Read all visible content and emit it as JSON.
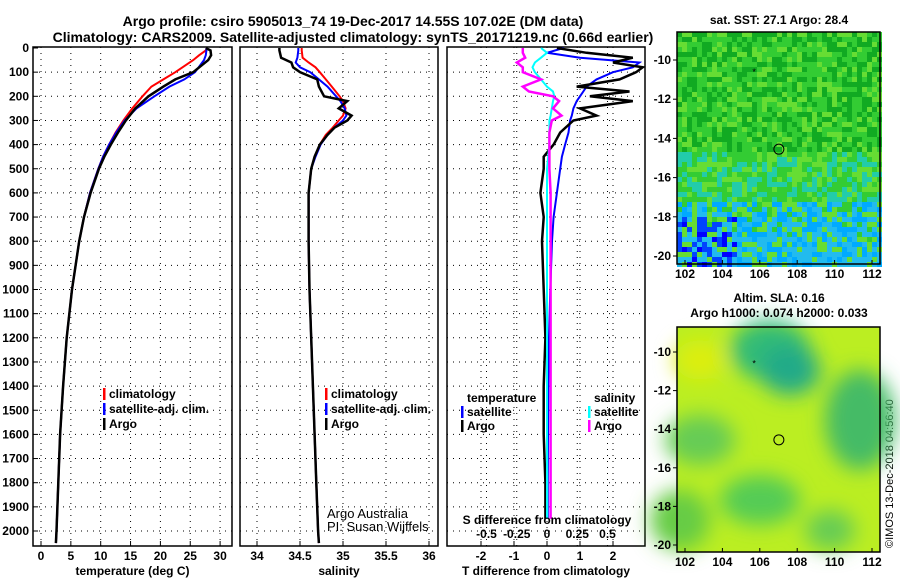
{
  "title": {
    "line1": "Argo profile: csiro 5905013_74 19-Dec-2017 14.55S 107.02E (DM data)",
    "line2": "Climatology: CARS2009. Satellite-adjusted climatology: synTS_20171219.nc (0.66d earlier)"
  },
  "credit": "©IMOS 13-Dec-2018 04:56:40",
  "colors": {
    "climatology": "#ff0000",
    "satellite": "#0000ff",
    "argo": "#000000",
    "sal_satellite": "#00ffff",
    "sal_argo": "#ff00ff"
  },
  "chart_data": [
    {
      "type": "line",
      "id": "temperature",
      "xlabel": "temperature (deg C)",
      "ylabel": "",
      "xlim": [
        -1.3,
        32
      ],
      "ylim": [
        2065,
        -10
      ],
      "xticks": [
        "0",
        "5",
        "10",
        "15",
        "20",
        "25",
        "30"
      ],
      "yticks": [
        "0",
        "100",
        "200",
        "300",
        "400",
        "500",
        "600",
        "700",
        "800",
        "900",
        "1000",
        "1100",
        "1200",
        "1300",
        "1400",
        "1500",
        "1600",
        "1700",
        "1800",
        "1900",
        "2000"
      ],
      "legend": [
        "climatology",
        "satellite-adj. clim.",
        "Argo"
      ],
      "depth": [
        0,
        10,
        30,
        50,
        100,
        130,
        160,
        200,
        250,
        300,
        350,
        400,
        450,
        500,
        600,
        700,
        800,
        900,
        1000,
        1200,
        1400,
        1600,
        1800,
        2000,
        2050
      ],
      "series": [
        {
          "name": "climatology",
          "values": [
            27.8,
            27.6,
            26.5,
            25.5,
            22.5,
            20.5,
            18.5,
            17.0,
            15.3,
            13.8,
            12.5,
            11.4,
            10.4,
            9.6,
            8.2,
            7.2,
            6.4,
            5.8,
            5.2,
            4.3,
            3.7,
            3.2,
            2.9,
            2.6,
            2.5
          ]
        },
        {
          "name": "satellite-adj. clim.",
          "values": [
            27.7,
            27.7,
            27.6,
            27.3,
            25.8,
            24.0,
            21.5,
            19.0,
            16.0,
            14.0,
            12.6,
            11.4,
            10.4,
            9.6,
            8.2,
            7.2,
            6.4,
            5.8,
            5.2,
            4.3,
            3.7,
            3.2,
            2.9,
            2.6,
            2.5
          ]
        },
        {
          "name": "Argo",
          "values": [
            27.6,
            28.4,
            28.5,
            28.0,
            25.5,
            22.5,
            20.5,
            18.0,
            15.8,
            14.2,
            12.9,
            11.7,
            10.6,
            9.7,
            8.3,
            7.2,
            6.4,
            5.8,
            5.2,
            4.3,
            3.7,
            3.2,
            2.9,
            2.6,
            2.5
          ]
        }
      ]
    },
    {
      "type": "line",
      "id": "salinity",
      "xlabel": "salinity",
      "xlim": [
        33.9,
        36.2
      ],
      "xticks": [
        "34",
        "34.5",
        "35",
        "35.5",
        "36"
      ],
      "legend": [
        "climatology",
        "satellite-adj. clim.",
        "Argo"
      ],
      "annotation": [
        "Argo Australia",
        "PI: Susan Wijffels"
      ],
      "depth": [
        0,
        10,
        40,
        60,
        80,
        100,
        130,
        160,
        200,
        220,
        250,
        280,
        300,
        330,
        360,
        400,
        450,
        500,
        600,
        800,
        1000,
        1200,
        1400,
        1600,
        1800,
        2000,
        2050
      ],
      "series": [
        {
          "name": "climatology",
          "values": [
            34.52,
            34.52,
            34.53,
            34.6,
            34.68,
            34.73,
            34.8,
            34.87,
            34.96,
            35.0,
            35.03,
            35.0,
            34.95,
            34.88,
            34.8,
            34.73,
            34.67,
            34.63,
            34.6,
            34.6,
            34.61,
            34.63,
            34.65,
            34.67,
            34.69,
            34.71,
            34.72
          ]
        },
        {
          "name": "satellite-adj. clim.",
          "values": [
            34.48,
            34.48,
            34.47,
            34.45,
            34.5,
            34.62,
            34.72,
            34.82,
            34.92,
            34.97,
            35.02,
            35.04,
            35.0,
            34.9,
            34.82,
            34.74,
            34.68,
            34.63,
            34.6,
            34.6,
            34.61,
            34.63,
            34.65,
            34.67,
            34.69,
            34.71,
            34.72
          ]
        },
        {
          "name": "Argo",
          "values": [
            34.26,
            34.26,
            34.28,
            34.4,
            34.42,
            34.5,
            34.7,
            34.72,
            34.78,
            35.05,
            34.95,
            35.1,
            35.05,
            34.9,
            34.82,
            34.73,
            34.67,
            34.63,
            34.6,
            34.6,
            34.61,
            34.63,
            34.65,
            34.67,
            34.69,
            34.71,
            34.72
          ]
        }
      ]
    },
    {
      "type": "line",
      "id": "differences",
      "xlabel": "T difference from climatology",
      "x2label": "S difference from climatology",
      "xlim": [
        -3,
        3
      ],
      "xticks": [
        "-2",
        "-1",
        "0",
        "1",
        "2"
      ],
      "x2ticks": [
        "-0.5",
        "-0.25",
        "0",
        "0.25",
        "0.5"
      ],
      "legend": {
        "temperature_header": "temperature",
        "salinity_header": "salinity",
        "temperature": [
          "satellite",
          "Argo"
        ],
        "salinity": [
          "satellite",
          "Argo"
        ]
      },
      "depth": [
        0,
        20,
        40,
        60,
        80,
        100,
        130,
        160,
        180,
        200,
        220,
        250,
        280,
        300,
        350,
        400,
        450,
        500,
        600,
        700,
        800,
        1000,
        1200,
        1400,
        1600,
        1800,
        1950
      ],
      "series": [
        {
          "name": "T satellite",
          "values": [
            0.5,
            0.0,
            1.0,
            2.8,
            2.6,
            2.0,
            1.5,
            1.2,
            1.1,
            1.0,
            0.9,
            0.8,
            0.75,
            0.7,
            0.65,
            0.55,
            0.45,
            0.4,
            0.3,
            0.2,
            0.15,
            0.1,
            0.06,
            0.04,
            0.03,
            0.02,
            0.02
          ]
        },
        {
          "name": "T Argo",
          "values": [
            0.3,
            1.2,
            2.6,
            2.0,
            2.9,
            2.7,
            2.2,
            0.9,
            2.5,
            1.3,
            2.6,
            1.0,
            1.5,
            0.8,
            0.4,
            0.2,
            -0.1,
            -0.1,
            -0.2,
            -0.1,
            -0.15,
            -0.1,
            -0.05,
            -0.1,
            -0.1,
            -0.05,
            -0.05
          ]
        },
        {
          "name": "S satellite",
          "values": [
            -0.05,
            0.0,
            -0.05,
            -0.1,
            -0.12,
            -0.1,
            -0.05,
            0.0,
            0.05,
            0.06,
            0.05,
            0.04,
            0.03,
            0.02,
            0.02,
            0.02,
            0.01,
            0.0,
            0.0,
            0.0,
            0.0,
            0.0,
            0.0,
            0.0,
            0.0,
            0.0,
            0.0
          ]
        },
        {
          "name": "S Argo",
          "values": [
            -0.2,
            -0.2,
            -0.18,
            -0.25,
            -0.2,
            -0.2,
            -0.05,
            -0.2,
            -0.15,
            0.05,
            0.1,
            0.05,
            0.12,
            0.04,
            0.02,
            0.02,
            0.02,
            0.02,
            0.03,
            0.03,
            0.03,
            0.03,
            0.03,
            0.03,
            0.03,
            0.03,
            0.03
          ]
        }
      ]
    },
    {
      "type": "heatmap",
      "id": "sst-map",
      "title": "sat. SST: 27.1 Argo: 28.4",
      "xlim": [
        101.8,
        112.5
      ],
      "ylim": [
        -20.4,
        -9.0
      ],
      "xticks": [
        "102",
        "104",
        "106",
        "108",
        "110",
        "112"
      ],
      "yticks": [
        "-10",
        "-12",
        "-14",
        "-16",
        "-18",
        "-20"
      ],
      "argo_position": [
        107.02,
        -14.55
      ],
      "prev_position": [
        105.7,
        -10.6
      ]
    },
    {
      "type": "heatmap",
      "id": "sla-map",
      "title": [
        "Altim. SLA: 0.16",
        "Argo h1000: 0.074 h2000: 0.033"
      ],
      "xlim": [
        101.8,
        112.5
      ],
      "ylim": [
        -20.4,
        -9.0
      ],
      "xticks": [
        "102",
        "104",
        "106",
        "108",
        "110",
        "112"
      ],
      "yticks": [
        "-10",
        "-12",
        "-14",
        "-16",
        "-18",
        "-20"
      ],
      "argo_position": [
        107.02,
        -14.55
      ],
      "prev_position": [
        105.7,
        -10.6
      ]
    }
  ]
}
